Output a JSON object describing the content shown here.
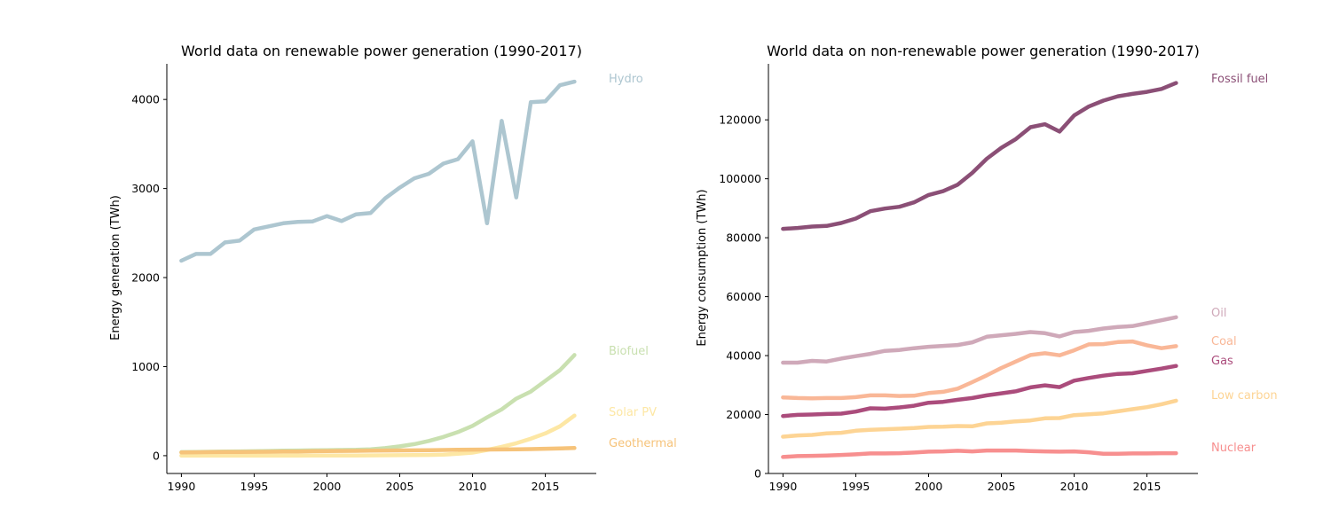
{
  "chart_data": [
    {
      "type": "line",
      "title": "World data on renewable power generation (1990-2017)",
      "xlabel": "",
      "ylabel": "Energy generation (TWh)",
      "xlim": [
        1989,
        2018.5
      ],
      "ylim": [
        -200,
        4400
      ],
      "xticks": [
        1990,
        1995,
        2000,
        2005,
        2010,
        2015
      ],
      "yticks": [
        0,
        1000,
        2000,
        3000,
        4000
      ],
      "grid": false,
      "legend": "direct labels at right end of each line",
      "x": [
        1990,
        1991,
        1992,
        1993,
        1994,
        1995,
        1996,
        1997,
        1998,
        1999,
        2000,
        2001,
        2002,
        2003,
        2004,
        2005,
        2006,
        2007,
        2008,
        2009,
        2010,
        2011,
        2012,
        2013,
        2014,
        2015,
        2016,
        2017
      ],
      "series": [
        {
          "name": "Hydro",
          "color": "#adc6d0",
          "values": [
            2190,
            2265,
            2265,
            2395,
            2415,
            2540,
            2575,
            2610,
            2625,
            2630,
            2690,
            2635,
            2710,
            2725,
            2890,
            3010,
            3115,
            3165,
            3280,
            3330,
            3530,
            2610,
            3760,
            2900,
            3970,
            3980,
            4160,
            4200
          ]
        },
        {
          "name": "Biofuel",
          "color": "#c9e0b0",
          "values": [
            40,
            42,
            44,
            46,
            48,
            50,
            53,
            56,
            58,
            60,
            62,
            64,
            66,
            72,
            85,
            105,
            130,
            165,
            210,
            265,
            335,
            430,
            520,
            640,
            720,
            840,
            960,
            1130
          ]
        },
        {
          "name": "Solar PV",
          "color": "#fde7a4",
          "values": [
            0,
            0,
            0,
            0,
            0,
            0,
            0,
            0,
            0,
            1,
            1,
            2,
            2,
            3,
            4,
            5,
            7,
            8,
            12,
            21,
            34,
            64,
            100,
            140,
            190,
            250,
            330,
            450
          ]
        },
        {
          "name": "Geothermal",
          "color": "#f6c37a",
          "values": [
            36,
            38,
            40,
            41,
            42,
            43,
            44,
            46,
            47,
            50,
            52,
            53,
            54,
            56,
            58,
            59,
            60,
            62,
            64,
            66,
            68,
            69,
            70,
            72,
            74,
            78,
            82,
            86
          ]
        }
      ]
    },
    {
      "type": "line",
      "title": "World data on non-renewable power generation (1990-2017)",
      "xlabel": "",
      "ylabel": "Energy consumption (TWh)",
      "xlim": [
        1989,
        2018.5
      ],
      "ylim": [
        0,
        139000
      ],
      "xticks": [
        1990,
        1995,
        2000,
        2005,
        2010,
        2015
      ],
      "yticks": [
        0,
        20000,
        40000,
        60000,
        80000,
        100000,
        120000
      ],
      "grid": false,
      "legend": "direct labels at right end of each line",
      "x": [
        1990,
        1991,
        1992,
        1993,
        1994,
        1995,
        1996,
        1997,
        1998,
        1999,
        2000,
        2001,
        2002,
        2003,
        2004,
        2005,
        2006,
        2007,
        2008,
        2009,
        2010,
        2011,
        2012,
        2013,
        2014,
        2015,
        2016,
        2017
      ],
      "series": [
        {
          "name": "Fossil fuel",
          "color": "#8b4f76",
          "values": [
            83000,
            83300,
            83800,
            84000,
            85000,
            86500,
            89000,
            89900,
            90500,
            92000,
            94500,
            95800,
            98000,
            102000,
            106800,
            110500,
            113500,
            117500,
            118500,
            116000,
            121500,
            124500,
            126500,
            128000,
            128800,
            129500,
            130500,
            132500
          ]
        },
        {
          "name": "Oil",
          "color": "#cfa9b9",
          "values": [
            37600,
            37600,
            38200,
            38000,
            39000,
            39800,
            40600,
            41600,
            41900,
            42500,
            43000,
            43300,
            43600,
            44500,
            46400,
            46900,
            47400,
            48000,
            47600,
            46500,
            48000,
            48400,
            49200,
            49700,
            50000,
            51000,
            52000,
            53000
          ]
        },
        {
          "name": "Coal",
          "color": "#f9b797",
          "values": [
            25800,
            25600,
            25500,
            25600,
            25600,
            25900,
            26500,
            26500,
            26300,
            26400,
            27300,
            27700,
            28800,
            31000,
            33300,
            35800,
            38000,
            40200,
            40800,
            40100,
            41800,
            43800,
            43900,
            44600,
            44800,
            43500,
            42500,
            43200
          ]
        },
        {
          "name": "Gas",
          "color": "#ab4c7c",
          "values": [
            19500,
            19900,
            20000,
            20200,
            20300,
            21000,
            22100,
            22000,
            22400,
            23000,
            24000,
            24300,
            25000,
            25600,
            26500,
            27200,
            27900,
            29200,
            29900,
            29300,
            31500,
            32400,
            33200,
            33800,
            34000,
            34800,
            35600,
            36500
          ]
        },
        {
          "name": "Low carbon",
          "color": "#fdd494",
          "values": [
            12500,
            12900,
            13100,
            13600,
            13800,
            14500,
            14800,
            15000,
            15200,
            15400,
            15800,
            15900,
            16100,
            16000,
            17000,
            17200,
            17700,
            18000,
            18700,
            18800,
            19800,
            20100,
            20400,
            21100,
            21800,
            22500,
            23500,
            24700
          ]
        },
        {
          "name": "Nuclear",
          "color": "#f78f8f",
          "values": [
            5600,
            5900,
            6000,
            6100,
            6300,
            6500,
            6800,
            6800,
            6900,
            7100,
            7400,
            7500,
            7700,
            7500,
            7800,
            7800,
            7800,
            7600,
            7500,
            7400,
            7500,
            7200,
            6700,
            6700,
            6800,
            6800,
            6900,
            6900
          ]
        }
      ]
    }
  ]
}
